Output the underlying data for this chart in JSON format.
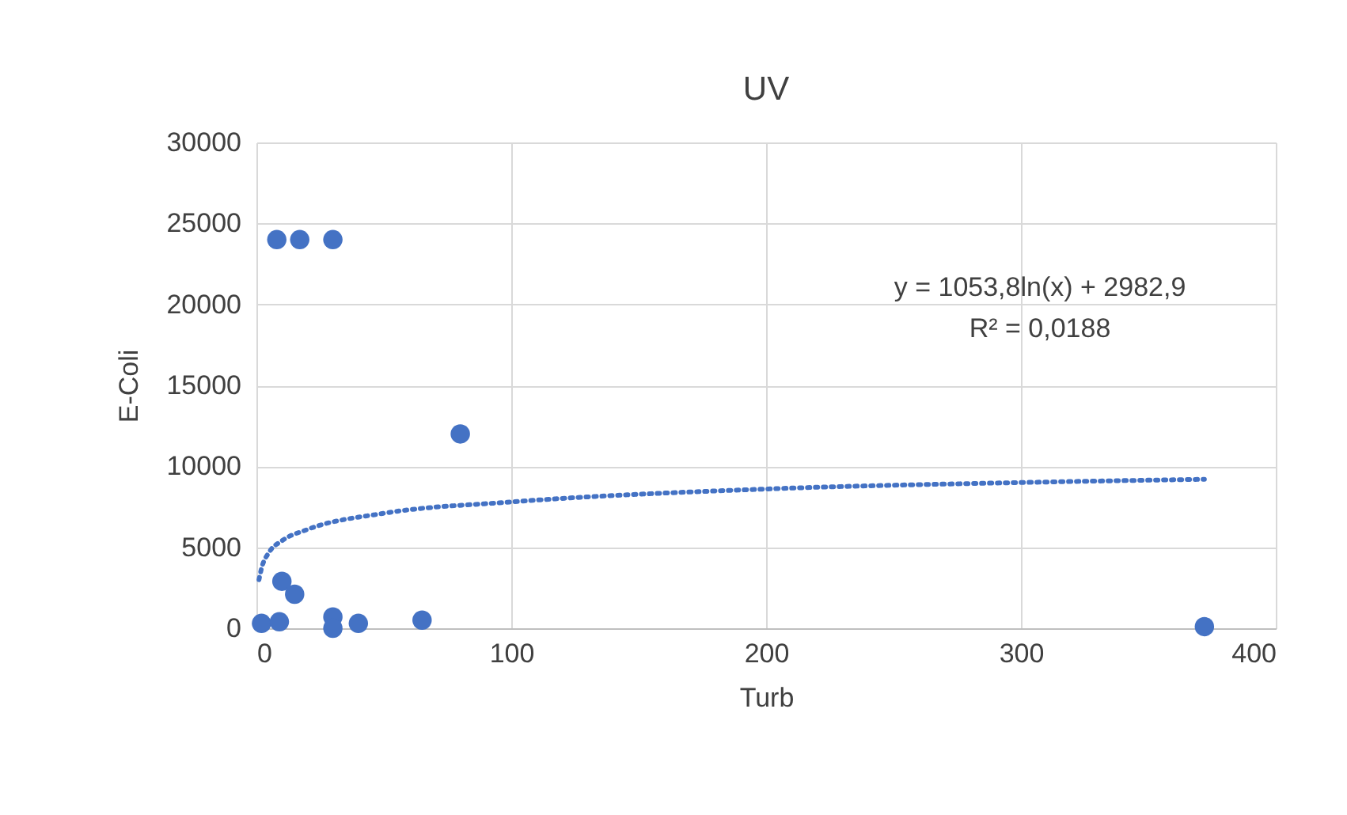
{
  "chart_data": {
    "type": "scatter",
    "title": "UV",
    "xlabel": "Turb",
    "ylabel": "E-Coli",
    "xlim": [
      0,
      400
    ],
    "xticks": [
      0,
      100,
      200,
      300,
      400
    ],
    "ylim": [
      0,
      30000
    ],
    "yticks": [
      0,
      5000,
      10000,
      15000,
      20000,
      25000,
      30000
    ],
    "grid": true,
    "marker": "circle",
    "annotations": [
      "y = 1053,8ln(x) + 2982,9",
      "R² = 0,0188"
    ],
    "series": [
      {
        "color": "#4472c4",
        "x": [
          8,
          17,
          30,
          80,
          10,
          15,
          2,
          9,
          30,
          30,
          40,
          65,
          372
        ],
        "values": [
          24000,
          24000,
          24000,
          12000,
          2900,
          2100,
          300,
          400,
          700,
          0,
          300,
          500,
          100
        ]
      },
      {
        "type": "line",
        "color": "#4472c4",
        "line_style": "dotted",
        "marker": "none",
        "x": [
          1,
          2,
          5,
          10,
          20,
          50,
          100,
          200,
          300,
          372
        ],
        "values": [
          3000,
          3700,
          4700,
          5400,
          6100,
          7100,
          7800,
          8600,
          9000,
          9200
        ]
      }
    ]
  }
}
